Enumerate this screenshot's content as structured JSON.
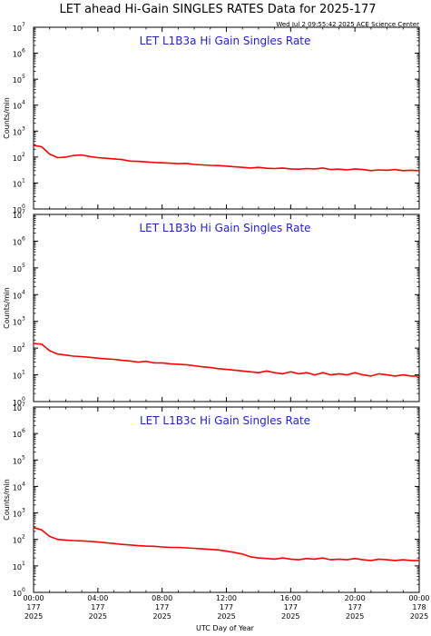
{
  "chart_data": {
    "type": "line",
    "title": "LET ahead Hi-Gain SINGLES RATES Data for 2025-177",
    "timestamp": "Wed Jul  2 09:55:42 2025 ACE Science Center",
    "xlabel": "UTC Day of Year",
    "ylabel": "Counts/min",
    "yscale": "log",
    "ylim": [
      1,
      10000000
    ],
    "xlim": [
      0,
      24
    ],
    "line_color": "#ff0000",
    "x_ticks": [
      {
        "time": "00:00",
        "day": "177",
        "year": "2025"
      },
      {
        "time": "04:00",
        "day": "177",
        "year": "2025"
      },
      {
        "time": "08:00",
        "day": "177",
        "year": "2025"
      },
      {
        "time": "12:00",
        "day": "177",
        "year": "2025"
      },
      {
        "time": "16:00",
        "day": "177",
        "year": "2025"
      },
      {
        "time": "20:00",
        "day": "177",
        "year": "2025"
      },
      {
        "time": "00:00",
        "day": "178",
        "year": "2025"
      }
    ],
    "y_ticks": [
      {
        "base": "10",
        "exp": "0"
      },
      {
        "base": "10",
        "exp": "1"
      },
      {
        "base": "10",
        "exp": "2"
      },
      {
        "base": "10",
        "exp": "3"
      },
      {
        "base": "10",
        "exp": "4"
      },
      {
        "base": "10",
        "exp": "5"
      },
      {
        "base": "10",
        "exp": "6"
      },
      {
        "base": "10",
        "exp": "7"
      }
    ],
    "panels": [
      {
        "title": "LET L1B3a Hi Gain Singles Rate",
        "x": [
          0,
          0.5,
          1,
          1.5,
          2,
          2.5,
          3,
          3.5,
          4,
          4.5,
          5,
          5.5,
          6,
          6.5,
          7,
          7.5,
          8,
          8.5,
          9,
          9.5,
          10,
          10.5,
          11,
          11.5,
          12,
          12.5,
          13,
          13.5,
          14,
          14.5,
          15,
          15.5,
          16,
          16.5,
          17,
          17.5,
          18,
          18.5,
          19,
          19.5,
          20,
          20.5,
          21,
          21.5,
          22,
          22.5,
          23,
          23.5,
          24
        ],
        "y": [
          280,
          250,
          130,
          95,
          100,
          115,
          120,
          105,
          95,
          90,
          85,
          80,
          70,
          68,
          65,
          62,
          60,
          58,
          56,
          57,
          52,
          50,
          48,
          47,
          45,
          42,
          40,
          38,
          40,
          37,
          36,
          38,
          35,
          34,
          36,
          35,
          38,
          33,
          34,
          32,
          35,
          33,
          30,
          32,
          31,
          33,
          30,
          31,
          30
        ]
      },
      {
        "title": "LET L1B3b Hi Gain Singles Rate",
        "x": [
          0,
          0.5,
          1,
          1.5,
          2,
          2.5,
          3,
          3.5,
          4,
          4.5,
          5,
          5.5,
          6,
          6.5,
          7,
          7.5,
          8,
          8.5,
          9,
          9.5,
          10,
          10.5,
          11,
          11.5,
          12,
          12.5,
          13,
          13.5,
          14,
          14.5,
          15,
          15.5,
          16,
          16.5,
          17,
          17.5,
          18,
          18.5,
          19,
          19.5,
          20,
          20.5,
          21,
          21.5,
          22,
          22.5,
          23,
          23.5,
          24
        ],
        "y": [
          150,
          140,
          80,
          60,
          55,
          50,
          48,
          45,
          42,
          40,
          38,
          35,
          33,
          30,
          32,
          28,
          28,
          26,
          25,
          24,
          22,
          20,
          19,
          17,
          16,
          15,
          14,
          13,
          12,
          14,
          12,
          11,
          13,
          11,
          12,
          10,
          12,
          10,
          11,
          10,
          12,
          10,
          9,
          11,
          10,
          9,
          10,
          9,
          9
        ]
      },
      {
        "title": "LET L1B3c Hi Gain Singles Rate",
        "x": [
          0,
          0.5,
          1,
          1.5,
          2,
          2.5,
          3,
          3.5,
          4,
          4.5,
          5,
          5.5,
          6,
          6.5,
          7,
          7.5,
          8,
          8.5,
          9,
          9.5,
          10,
          10.5,
          11,
          11.5,
          12,
          12.5,
          13,
          13.5,
          14,
          14.5,
          15,
          15.5,
          16,
          16.5,
          17,
          17.5,
          18,
          18.5,
          19,
          19.5,
          20,
          20.5,
          21,
          21.5,
          22,
          22.5,
          23,
          23.5,
          24
        ],
        "y": [
          280,
          230,
          130,
          100,
          95,
          90,
          88,
          85,
          80,
          75,
          70,
          65,
          62,
          58,
          56,
          55,
          52,
          50,
          50,
          48,
          46,
          44,
          42,
          40,
          36,
          32,
          28,
          22,
          20,
          19,
          18,
          20,
          18,
          17,
          19,
          18,
          20,
          17,
          18,
          17,
          19,
          17,
          16,
          18,
          17,
          16,
          17,
          16,
          16
        ]
      }
    ]
  }
}
